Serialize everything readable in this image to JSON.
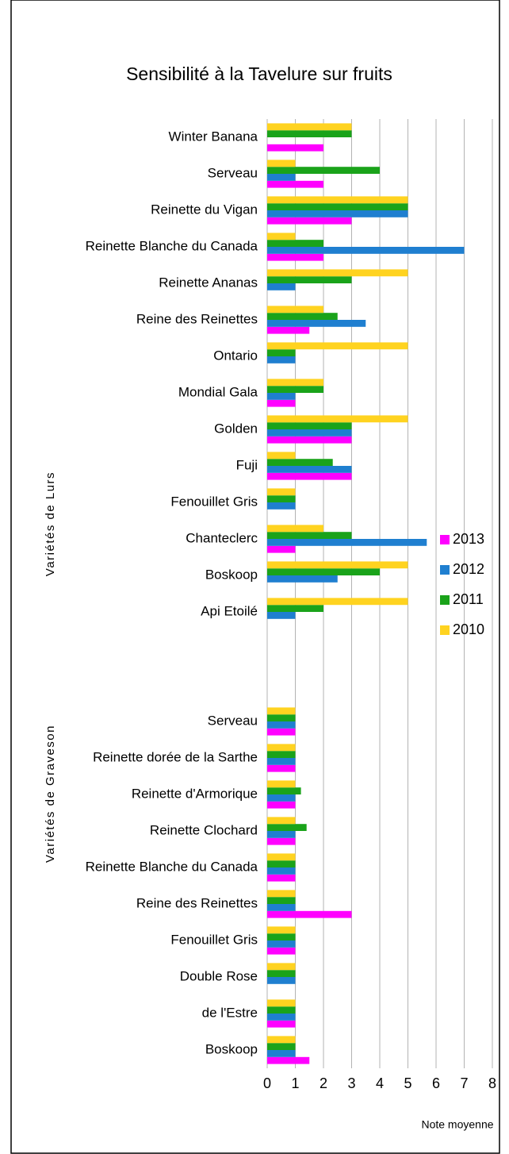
{
  "chart_data": {
    "type": "barh",
    "title": "Sensibilité à la Tavelure sur fruits",
    "xlabel": "Note moyenne",
    "annotations": [
      "Variétés de Lurs",
      "Variétés de Graveson"
    ],
    "categories": [
      "Winter Banana",
      "Serveau",
      "Reinette du Vigan",
      "Reinette Blanche du Canada",
      "Reinette Ananas",
      "Reine des Reinettes",
      "Ontario",
      "Mondial Gala",
      "Golden",
      "Fuji",
      "Fenouillet Gris",
      "Chanteclerc",
      "Boskoop",
      "Api Etoilé",
      null,
      null,
      "Serveau",
      "Reinette dorée de la Sarthe",
      "Reinette d'Armorique",
      "Reinette Clochard",
      "Reinette Blanche du Canada",
      "Reine des Reinettes",
      "Fenouillet Gris",
      "Double Rose",
      "de l'Estre",
      "Boskoop"
    ],
    "series": [
      {
        "name": "2013",
        "color": "#ff00ff",
        "values": [
          2,
          2,
          3,
          2,
          null,
          1.5,
          null,
          1,
          3,
          3,
          null,
          1,
          null,
          null,
          null,
          null,
          1,
          1,
          1,
          1,
          1,
          3,
          1,
          null,
          1,
          1.5
        ]
      },
      {
        "name": "2012",
        "color": "#1f7fd0",
        "values": [
          null,
          1,
          5,
          7,
          1,
          3.5,
          1,
          1,
          3,
          3,
          1,
          5.67,
          2.5,
          1,
          null,
          null,
          1,
          1,
          1,
          1,
          1,
          1,
          1,
          1,
          1,
          1
        ]
      },
      {
        "name": "2011",
        "color": "#1aa31a",
        "values": [
          3,
          4,
          5,
          2,
          3,
          2.5,
          1,
          2,
          3,
          2.33,
          1,
          3,
          4,
          2,
          null,
          null,
          1,
          1,
          1.2,
          1.4,
          1,
          1,
          1,
          1,
          1,
          1
        ]
      },
      {
        "name": "2010",
        "color": "#ffd320",
        "values": [
          3,
          1,
          5,
          1,
          5,
          2,
          5,
          2,
          5,
          1,
          1,
          2,
          5,
          5,
          null,
          null,
          1,
          1,
          1,
          1,
          1,
          1,
          1,
          1,
          1,
          1
        ]
      }
    ],
    "xlim": [
      0,
      8
    ],
    "xticks": [
      0,
      1,
      2,
      3,
      4,
      5,
      6,
      7,
      8
    ],
    "grid": true,
    "legend": "right"
  }
}
